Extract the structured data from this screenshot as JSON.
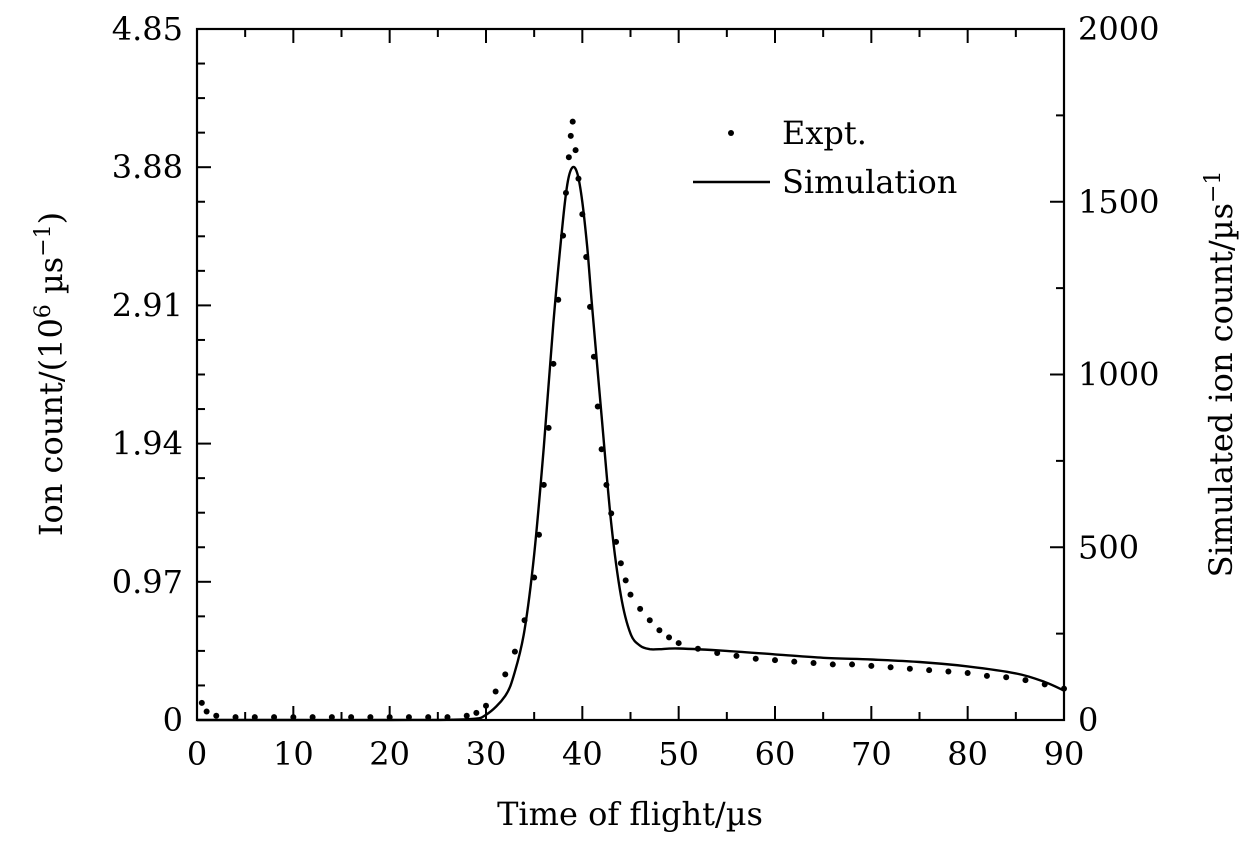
{
  "chart_data": {
    "type": "scatter",
    "xlabel": "Time of flight/µs",
    "ylabel_left": "Ion count/(10^6 µs^−1)",
    "ylabel_left_parts": {
      "pre": "Ion count/(10",
      "exp1": "6",
      "mid": " µs",
      "exp2": "−1",
      "post": ")"
    },
    "ylabel_right": "Simulated ion count/µs^−1",
    "ylabel_right_parts": {
      "pre": "Simulated ion count/µs",
      "exp": "−1"
    },
    "xlim": [
      0,
      90
    ],
    "ylim_left": [
      0,
      4.85
    ],
    "ylim_right": [
      0,
      2000
    ],
    "x_ticks": [
      0,
      10,
      20,
      30,
      40,
      50,
      60,
      70,
      80,
      90
    ],
    "y_left_ticks": [
      "0",
      "0.97",
      "1.94",
      "2.91",
      "3.88",
      "4.85"
    ],
    "y_right_ticks": [
      "0",
      "500",
      "1000",
      "1500",
      "2000"
    ],
    "grid": false,
    "legend_position": "top-right",
    "series": [
      {
        "name": "Expt.",
        "kind": "scatter",
        "axis": "left",
        "x": [
          0.5,
          1.0,
          2.0,
          4.0,
          6.0,
          8.0,
          10.0,
          12.0,
          14.0,
          16.0,
          18.0,
          20.0,
          22.0,
          24.0,
          26.0,
          28.0,
          29.0,
          30.0,
          31.0,
          32.0,
          33.0,
          34.0,
          35.0,
          35.5,
          36.0,
          36.5,
          37.0,
          37.5,
          38.0,
          38.3,
          38.6,
          38.8,
          39.0,
          39.3,
          39.6,
          40.0,
          40.4,
          40.8,
          41.2,
          41.6,
          42.0,
          42.5,
          43.0,
          43.5,
          44.0,
          44.5,
          45.0,
          46.0,
          47.0,
          48.0,
          49.0,
          50.0,
          52.0,
          54.0,
          56.0,
          58.0,
          60.0,
          62.0,
          64.0,
          66.0,
          68.0,
          70.0,
          72.0,
          74.0,
          76.0,
          78.0,
          80.0,
          82.0,
          84.0,
          86.0,
          88.0,
          90.0
        ],
        "y": [
          0.12,
          0.06,
          0.03,
          0.02,
          0.02,
          0.02,
          0.02,
          0.02,
          0.02,
          0.02,
          0.02,
          0.02,
          0.02,
          0.02,
          0.02,
          0.03,
          0.05,
          0.1,
          0.2,
          0.32,
          0.48,
          0.7,
          1.0,
          1.3,
          1.65,
          2.05,
          2.5,
          2.95,
          3.4,
          3.7,
          3.95,
          4.1,
          4.2,
          4.0,
          3.8,
          3.55,
          3.25,
          2.9,
          2.55,
          2.2,
          1.9,
          1.65,
          1.45,
          1.25,
          1.1,
          0.98,
          0.88,
          0.78,
          0.7,
          0.63,
          0.58,
          0.54,
          0.5,
          0.47,
          0.45,
          0.43,
          0.42,
          0.41,
          0.4,
          0.39,
          0.39,
          0.38,
          0.37,
          0.36,
          0.35,
          0.34,
          0.33,
          0.31,
          0.3,
          0.28,
          0.25,
          0.22
        ]
      },
      {
        "name": "Simulation",
        "kind": "line",
        "axis": "right",
        "x": [
          0,
          10,
          20,
          28,
          30,
          32,
          33,
          34,
          35,
          36,
          37,
          38,
          38.5,
          39,
          39.5,
          40,
          40.5,
          41,
          42,
          43,
          44,
          45,
          46,
          47,
          48,
          50,
          55,
          60,
          65,
          70,
          75,
          80,
          85,
          88,
          90
        ],
        "y": [
          0,
          0,
          0,
          2,
          15,
          70,
          140,
          260,
          480,
          790,
          1150,
          1450,
          1560,
          1600,
          1580,
          1500,
          1370,
          1200,
          880,
          570,
          360,
          250,
          215,
          205,
          205,
          207,
          200,
          190,
          180,
          175,
          168,
          155,
          135,
          110,
          85
        ]
      }
    ]
  }
}
